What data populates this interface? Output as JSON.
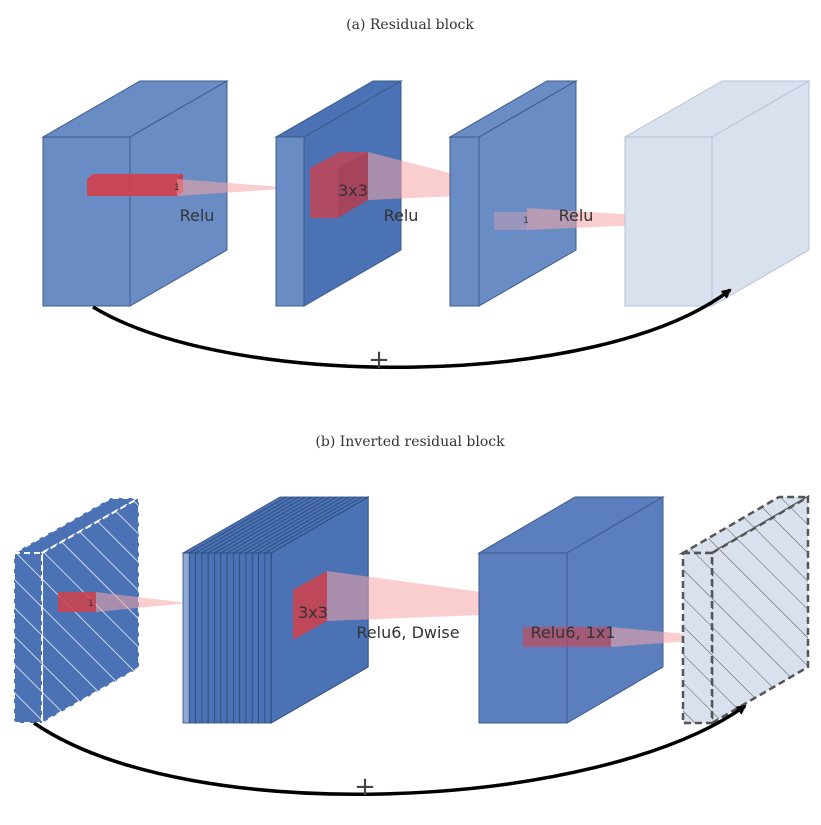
{
  "diagram": {
    "block_a": {
      "title": "(a) Residual block",
      "kernel_1_label": "1",
      "relu_1": "Relu",
      "kernel_3x3_label": "3x3",
      "relu_2": "Relu",
      "kernel_1b_label": "1",
      "relu_3": "Relu",
      "add_symbol": "+"
    },
    "block_b": {
      "title": "(b) Inverted residual block",
      "kernel_1_label": "1",
      "kernel_3x3_label": "3x3",
      "dwise_label": "Relu6, Dwise",
      "pointwise_label": "Relu6, 1x1",
      "add_symbol": "+"
    }
  },
  "colors": {
    "block_blue": "#6a8cc5",
    "block_blue_dark": "#4a72b4",
    "block_pale": "#d9e0ee",
    "kernel_red": "#d43f4a",
    "projection_pink": "#f6a5a5",
    "arrow": "#000000"
  }
}
